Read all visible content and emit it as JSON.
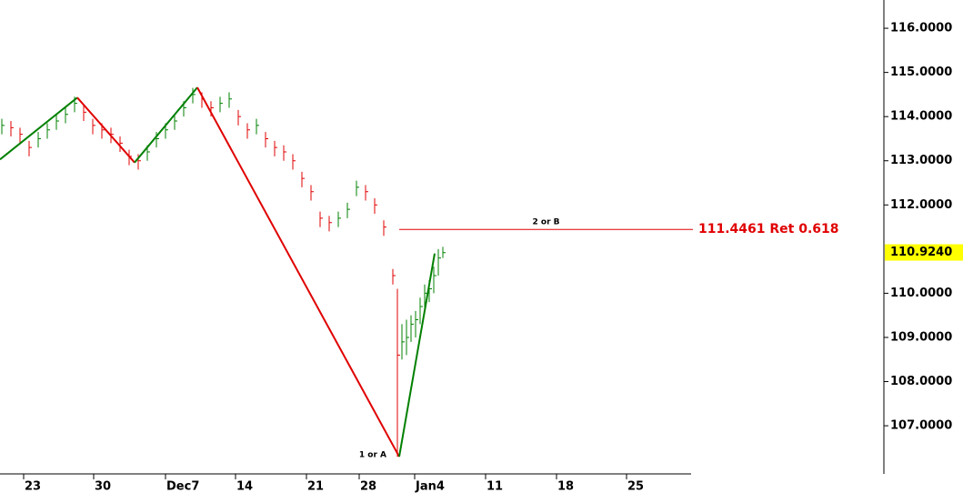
{
  "chart_data": {
    "type": "ohlc",
    "xlim": [
      0,
      97
    ],
    "ylim": [
      105.91,
      116.64
    ],
    "xticks": [
      {
        "value": 2.6,
        "label": "23"
      },
      {
        "value": 10.3,
        "label": "30"
      },
      {
        "value": 18.2,
        "label": "Dec7"
      },
      {
        "value": 25.9,
        "label": "14"
      },
      {
        "value": 33.7,
        "label": "21"
      },
      {
        "value": 39.5,
        "label": "28"
      },
      {
        "value": 45.6,
        "label": "Jan4"
      },
      {
        "value": 53.4,
        "label": "11"
      },
      {
        "value": 61.2,
        "label": "18"
      },
      {
        "value": 68.9,
        "label": "25"
      }
    ],
    "yticks": [
      {
        "value": 107,
        "label": "107.0000"
      },
      {
        "value": 108,
        "label": "108.0000"
      },
      {
        "value": 109,
        "label": "109.0000"
      },
      {
        "value": 110,
        "label": "110.0000"
      },
      {
        "value": 112,
        "label": "112.0000"
      },
      {
        "value": 113,
        "label": "113.0000"
      },
      {
        "value": 114,
        "label": "114.0000"
      },
      {
        "value": 115,
        "label": "115.0000"
      },
      {
        "value": 116,
        "label": "116.0000"
      }
    ],
    "up_color": "#008000",
    "down_color": "#e00000",
    "bars": {
      "x": [
        0.2,
        1.2,
        2.2,
        3.2,
        4.2,
        5.2,
        6.2,
        7.2,
        8.2,
        9.2,
        10.2,
        11.2,
        12.2,
        13.2,
        14.2,
        15.2,
        16.2,
        17.2,
        18.2,
        19.2,
        20.2,
        21.2,
        22.2,
        23.2,
        24.2,
        25.2,
        26.2,
        27.2,
        28.2,
        29.2,
        30.2,
        31.2,
        32.2,
        33.2,
        34.2,
        35.2,
        36.2,
        37.2,
        38.2,
        39.2,
        40.2,
        41.2,
        42.2,
        43.2,
        43.7,
        44.2,
        44.7,
        45.2,
        45.7,
        46.2,
        46.7,
        47.2,
        47.7,
        48.2,
        48.7
      ],
      "high": [
        113.95,
        113.9,
        113.75,
        113.45,
        113.65,
        113.85,
        114.05,
        114.2,
        114.45,
        114.25,
        113.95,
        113.85,
        113.75,
        113.55,
        113.25,
        113.15,
        113.35,
        113.65,
        113.85,
        114.05,
        114.35,
        114.65,
        114.55,
        114.35,
        114.45,
        114.55,
        114.15,
        113.85,
        113.95,
        113.65,
        113.45,
        113.35,
        113.15,
        112.75,
        112.45,
        111.85,
        111.75,
        111.85,
        112.05,
        112.55,
        112.45,
        112.15,
        111.65,
        110.55,
        110.1,
        109.3,
        109.4,
        109.5,
        109.6,
        109.9,
        110.2,
        110.3,
        110.6,
        111.0,
        111.05
      ],
      "low": [
        113.6,
        113.55,
        113.4,
        113.1,
        113.3,
        113.5,
        113.7,
        113.85,
        114.1,
        113.9,
        113.6,
        113.5,
        113.4,
        113.2,
        112.9,
        112.8,
        113.0,
        113.3,
        113.5,
        113.7,
        114.0,
        114.3,
        114.2,
        114.0,
        114.1,
        114.2,
        113.8,
        113.5,
        113.6,
        113.3,
        113.1,
        113.0,
        112.8,
        112.4,
        112.1,
        111.5,
        111.4,
        111.5,
        111.7,
        112.2,
        112.1,
        111.8,
        111.3,
        110.2,
        106.3,
        108.5,
        108.6,
        108.9,
        109.0,
        109.3,
        109.6,
        109.8,
        110.0,
        110.4,
        110.8
      ],
      "close": [
        113.8,
        113.75,
        113.6,
        113.3,
        113.5,
        113.7,
        113.9,
        114.05,
        114.3,
        114.1,
        113.8,
        113.7,
        113.6,
        113.4,
        113.1,
        113.0,
        113.2,
        113.5,
        113.7,
        113.9,
        114.2,
        114.5,
        114.4,
        114.2,
        114.3,
        114.4,
        114.0,
        113.7,
        113.8,
        113.5,
        113.3,
        113.2,
        113.0,
        112.6,
        112.3,
        111.7,
        111.6,
        111.7,
        111.9,
        112.4,
        112.3,
        112.0,
        111.5,
        110.4,
        108.6,
        108.9,
        109.0,
        109.3,
        109.4,
        109.7,
        110.0,
        110.1,
        110.4,
        110.8,
        110.92
      ]
    },
    "zigzag": {
      "x": [
        0,
        8.5,
        14.8,
        21.7,
        43.9,
        47.8
      ],
      "y": [
        113.03,
        114.43,
        112.96,
        114.66,
        106.3,
        110.9
      ]
    },
    "retracement": {
      "value": 111.4461,
      "label": "111.4461 Ret 0.618",
      "color": "#e00000"
    },
    "wave_labels": [
      "1 or A",
      "2 or B"
    ],
    "last_price": {
      "value": 110.924,
      "label": "110.9240",
      "color": "#ffff00"
    }
  }
}
